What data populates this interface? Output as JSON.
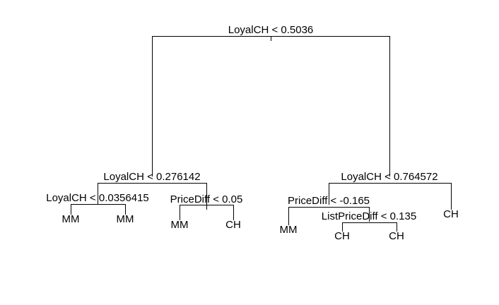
{
  "tree": {
    "splits": {
      "root": "LoyalCH < 0.5036",
      "left": "LoyalCH < 0.276142",
      "left_left": "LoyalCH < 0.0356415",
      "left_right": "PriceDiff < 0.05",
      "right": "LoyalCH < 0.764572",
      "right_left": "PriceDiff < -0.165",
      "right_left_right": "ListPriceDiff < 0.135"
    },
    "leaves": {
      "ll_l": "MM",
      "ll_r": "MM",
      "lr_l": "MM",
      "lr_r": "CH",
      "rl_l": "MM",
      "rlr_l": "CH",
      "rlr_r": "CH",
      "r_r": "CH"
    }
  }
}
